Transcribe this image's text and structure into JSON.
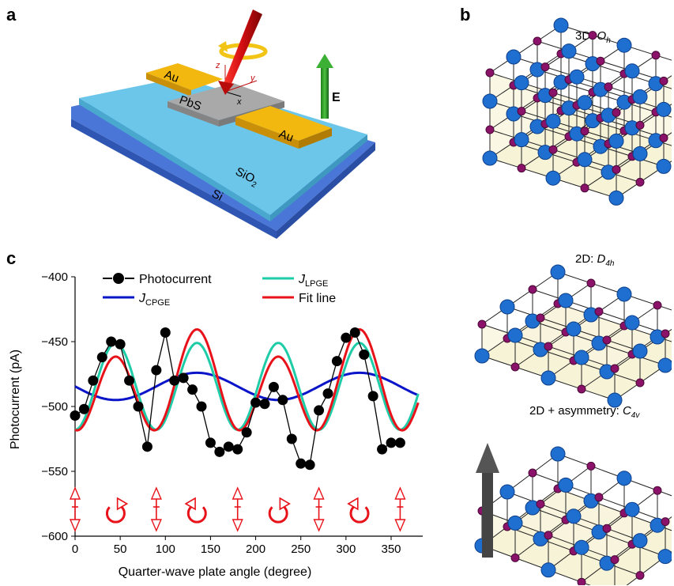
{
  "panels": {
    "a": "a",
    "b": "b",
    "c": "c"
  },
  "device": {
    "electrode_left": "Au",
    "electrode_right": "Au",
    "channel": "PbS",
    "oxide": "SiO",
    "oxide_sub": "2",
    "substrate": "Si",
    "field": "E",
    "axis_x": "x",
    "axis_y": "y",
    "axis_z": "z"
  },
  "lattices": [
    {
      "caption_prefix": "3D: ",
      "symmetry": "O",
      "symmetry_sub": "h"
    },
    {
      "caption_prefix": "2D: ",
      "symmetry": "D",
      "symmetry_sub": "4h"
    },
    {
      "caption_prefix": "2D + asymmetry: ",
      "symmetry": "C",
      "symmetry_sub": "4v"
    }
  ],
  "colors": {
    "measured": "#000000",
    "cpge": "#0a14c8",
    "lpge": "#1fcca8",
    "fit": "#e8131a",
    "lattice_large": "#1f6fd0",
    "lattice_small": "#8a1269",
    "cube_fill": "#f6f1d4",
    "electrode": "#f2b810",
    "oxide": "#6cc6ea",
    "silicon": "#4a76d8",
    "channel": "#a9a9a9"
  },
  "chart_data": {
    "type": "line",
    "xlabel": "Quarter-wave plate angle (degree)",
    "ylabel": "Photocurrent (pA)",
    "xlim": [
      0,
      385
    ],
    "ylim": [
      -600,
      -400
    ],
    "xticks": [
      "0",
      "50",
      "100",
      "150",
      "200",
      "250",
      "300",
      "350"
    ],
    "xtick_values": [
      0,
      50,
      100,
      150,
      200,
      250,
      300,
      350
    ],
    "yticks": [
      "-400",
      "-450",
      "-500",
      "-550",
      "-600"
    ],
    "ytick_values": [
      -400,
      -450,
      -500,
      -550,
      -600
    ],
    "legend": [
      {
        "key": "photocurrent",
        "label": "Photocurrent"
      },
      {
        "key": "lpge",
        "label": "J",
        "sub": "LPGE"
      },
      {
        "key": "cpge",
        "label": "J",
        "sub": "CPGE"
      },
      {
        "key": "fit",
        "label": "Fit line"
      }
    ],
    "series": [
      {
        "name": "Photocurrent",
        "style": "line+markers",
        "x": [
          0,
          10,
          20,
          30,
          40,
          50,
          60,
          70,
          80,
          90,
          100,
          110,
          120,
          130,
          140,
          150,
          160,
          170,
          180,
          190,
          200,
          210,
          220,
          230,
          240,
          250,
          260,
          270,
          280,
          290,
          300,
          310,
          320,
          330,
          340,
          350,
          360
        ],
        "y": [
          -507,
          -502,
          -480,
          -462,
          -450,
          -452,
          -480,
          -500,
          -531,
          -472,
          -443,
          -480,
          -478,
          -487,
          -500,
          -528,
          -535,
          -531,
          -533,
          -520,
          -497,
          -498,
          -485,
          -495,
          -525,
          -544,
          -545,
          -503,
          -490,
          -465,
          -447,
          -443,
          -460,
          -492,
          -533,
          -528,
          -528
        ]
      },
      {
        "name": "J_CPGE",
        "style": "line",
        "offset": -484.5,
        "amp2": 0,
        "amp4": 0,
        "amp_sin2": -10.5,
        "x_max": 380
      },
      {
        "name": "J_LPGE",
        "style": "line",
        "offset": -484.5,
        "amp4": 33.5,
        "x_max": 380
      },
      {
        "name": "Fit line",
        "style": "line",
        "offset": -484.5,
        "amp4": 33.5,
        "amp_sin2": -10.5,
        "x_max": 380
      }
    ],
    "polarization_markers": [
      "linear",
      "circular-left",
      "linear",
      "circular-right",
      "linear",
      "circular-left",
      "linear",
      "circular-right",
      "linear"
    ],
    "polarization_marker_angles": [
      0,
      45,
      90,
      135,
      180,
      225,
      270,
      315,
      360
    ]
  }
}
